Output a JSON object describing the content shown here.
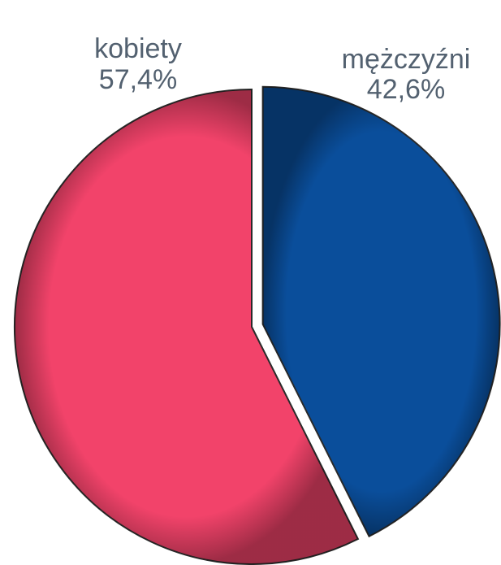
{
  "chart_data": {
    "type": "pie",
    "categories": [
      "mężczyźni",
      "kobiety"
    ],
    "values": [
      42.6,
      57.4
    ],
    "value_labels": [
      "42,6%",
      "57,4%"
    ],
    "colors": [
      "#0a4e9b",
      "#f2436a"
    ]
  }
}
